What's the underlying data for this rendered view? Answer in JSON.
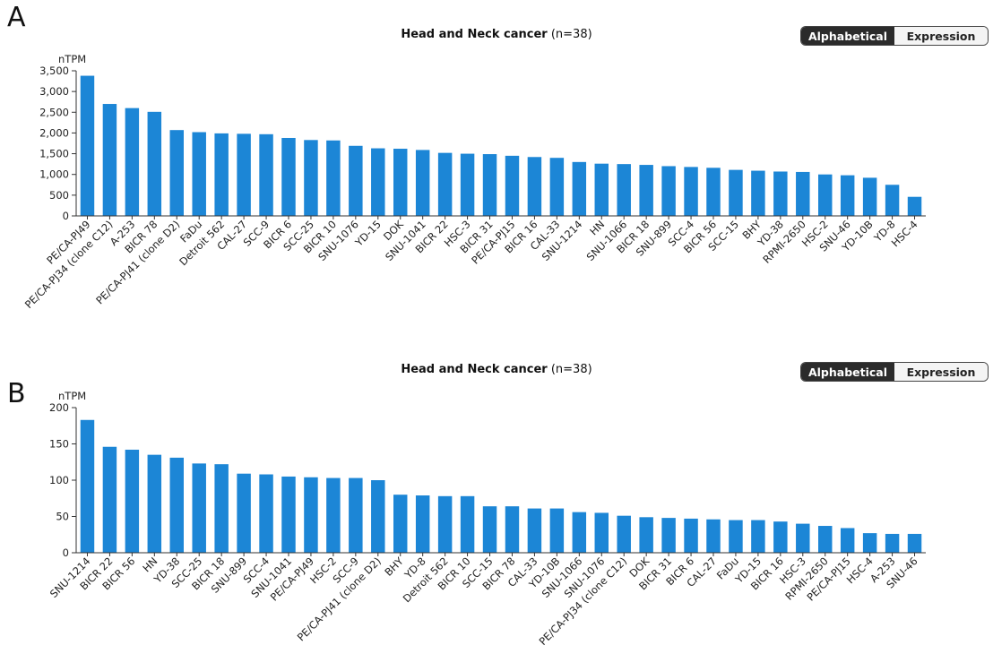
{
  "panels": [
    {
      "letter": "A",
      "title": "Head and Neck cancer",
      "subtitle": " (n=38)",
      "toggle": {
        "left": "Alphabetical",
        "right": "Expression",
        "active": "left"
      }
    },
    {
      "letter": "B",
      "title": "Head and Neck cancer",
      "subtitle": " (n=38)",
      "toggle": {
        "left": "Alphabetical",
        "right": "Expression",
        "active": "left"
      }
    }
  ],
  "colors": {
    "bar": "#1c86d6",
    "axis": "#333333",
    "text": "#222222"
  },
  "chart_data": [
    {
      "type": "bar",
      "title": "Head and Neck cancer (n=38)",
      "ylabel": "nTPM",
      "xlabel": "",
      "ylim": [
        0,
        3500
      ],
      "yticks": [
        0,
        500,
        1000,
        1500,
        2000,
        2500,
        3000,
        3500
      ],
      "ytick_labels": [
        "0",
        "500",
        "1,000",
        "1,500",
        "2,000",
        "2,500",
        "3,000",
        "3,500"
      ],
      "grid": false,
      "categories": [
        "PE/CA-PJ49",
        "PE/CA-PJ34 (clone C12)",
        "A-253",
        "BICR 78",
        "PE/CA-PJ41 (clone D2)",
        "FaDu",
        "Detroit 562",
        "CAL-27",
        "SCC-9",
        "BICR 6",
        "SCC-25",
        "BICR 10",
        "SNU-1076",
        "YD-15",
        "DOK",
        "SNU-1041",
        "BICR 22",
        "HSC-3",
        "BICR 31",
        "PE/CA-PJ15",
        "BICR 16",
        "CAL-33",
        "SNU-1214",
        "HN",
        "SNU-1066",
        "BICR 18",
        "SNU-899",
        "SCC-4",
        "BICR 56",
        "SCC-15",
        "BHY",
        "YD-38",
        "RPMI-2650",
        "HSC-2",
        "SNU-46",
        "YD-10B",
        "YD-8",
        "HSC-4"
      ],
      "values": [
        3380,
        2700,
        2600,
        2510,
        2070,
        2020,
        1990,
        1980,
        1970,
        1880,
        1830,
        1820,
        1690,
        1630,
        1620,
        1590,
        1520,
        1500,
        1490,
        1450,
        1420,
        1400,
        1300,
        1260,
        1250,
        1230,
        1200,
        1180,
        1160,
        1110,
        1090,
        1070,
        1060,
        1000,
        980,
        920,
        750,
        460
      ]
    },
    {
      "type": "bar",
      "title": "Head and Neck cancer (n=38)",
      "ylabel": "nTPM",
      "xlabel": "",
      "ylim": [
        0,
        200
      ],
      "yticks": [
        0,
        50,
        100,
        150,
        200
      ],
      "ytick_labels": [
        "0",
        "50",
        "100",
        "150",
        "200"
      ],
      "grid": false,
      "categories": [
        "SNU-1214",
        "BICR 22",
        "BICR 56",
        "HN",
        "YD-38",
        "SCC-25",
        "BICR 18",
        "SNU-899",
        "SCC-4",
        "SNU-1041",
        "PE/CA-PJ49",
        "HSC-2",
        "SCC-9",
        "PE/CA-PJ41 (clone D2)",
        "BHY",
        "YD-8",
        "Detroit 562",
        "BICR 10",
        "SCC-15",
        "BICR 78",
        "CAL-33",
        "YD-10B",
        "SNU-1066",
        "SNU-1076",
        "PE/CA-PJ34 (clone C12)",
        "DOK",
        "BICR 31",
        "BICR 6",
        "CAL-27",
        "FaDu",
        "YD-15",
        "BICR 16",
        "HSC-3",
        "RPMI-2650",
        "PE/CA-PJ15",
        "HSC-4",
        "A-253",
        "SNU-46"
      ],
      "values": [
        183,
        146,
        142,
        135,
        131,
        123,
        122,
        109,
        108,
        105,
        104,
        103,
        103,
        100,
        80,
        79,
        78,
        78,
        64,
        64,
        61,
        61,
        56,
        55,
        51,
        49,
        48,
        47,
        46,
        45,
        45,
        43,
        40,
        37,
        34,
        27,
        26,
        26
      ]
    }
  ]
}
